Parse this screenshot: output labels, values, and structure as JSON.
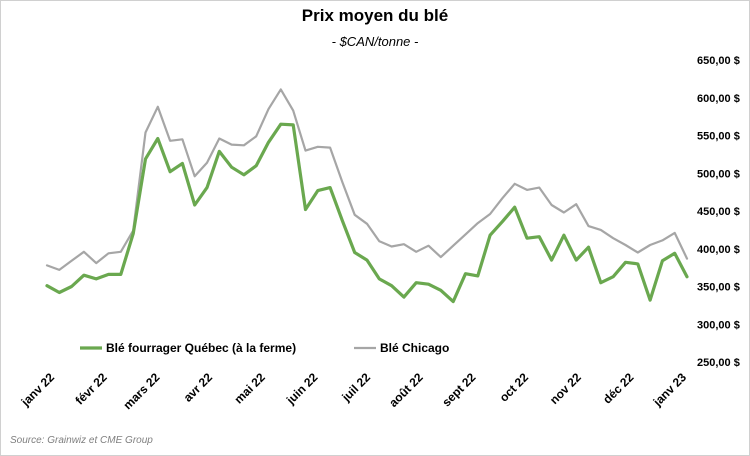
{
  "chart_data": {
    "type": "line",
    "title": "Prix moyen du blé",
    "subtitle": "- $CAN/tonne -",
    "source": "Source: Grainwiz et CME Group",
    "ylim": [
      250,
      650
    ],
    "yticks": [
      "250,00 $",
      "300,00 $",
      "350,00 $",
      "400,00 $",
      "450,00 $",
      "500,00 $",
      "550,00 $",
      "600,00 $",
      "650,00 $"
    ],
    "x_tick_labels": [
      "janv 22",
      "févr 22",
      "mars 22",
      "avr 22",
      "mai 22",
      "juin 22",
      "juil 22",
      "août 22",
      "sept 22",
      "oct 22",
      "nov 22",
      "déc 22",
      "janv 23"
    ],
    "legend_position": "middle-left",
    "grid": false,
    "series": [
      {
        "name": "Blé fourrager Québec (à la ferme)",
        "color": "#6aa84f",
        "values": [
          351,
          342,
          350,
          365,
          360,
          366,
          366,
          420,
          519,
          546,
          502,
          513,
          458,
          481,
          529,
          508,
          498,
          510,
          541,
          565,
          564,
          452,
          477,
          481,
          437,
          395,
          385,
          360,
          351,
          336,
          355,
          353,
          345,
          330,
          367,
          364,
          418,
          436,
          455,
          414,
          416,
          385,
          418,
          385,
          402,
          355,
          363,
          382,
          380,
          332,
          384,
          394,
          363
        ]
      },
      {
        "name": "Blé Chicago",
        "color": "#a6a6a6",
        "values": [
          378,
          372,
          384,
          396,
          381,
          394,
          396,
          424,
          554,
          588,
          543,
          545,
          496,
          514,
          546,
          538,
          537,
          549,
          585,
          611,
          583,
          530,
          535,
          534,
          488,
          445,
          433,
          410,
          403,
          406,
          396,
          404,
          389,
          404,
          419,
          434,
          446,
          467,
          486,
          478,
          481,
          458,
          448,
          459,
          430,
          425,
          414,
          405,
          395,
          405,
          411,
          421,
          387
        ]
      }
    ]
  }
}
